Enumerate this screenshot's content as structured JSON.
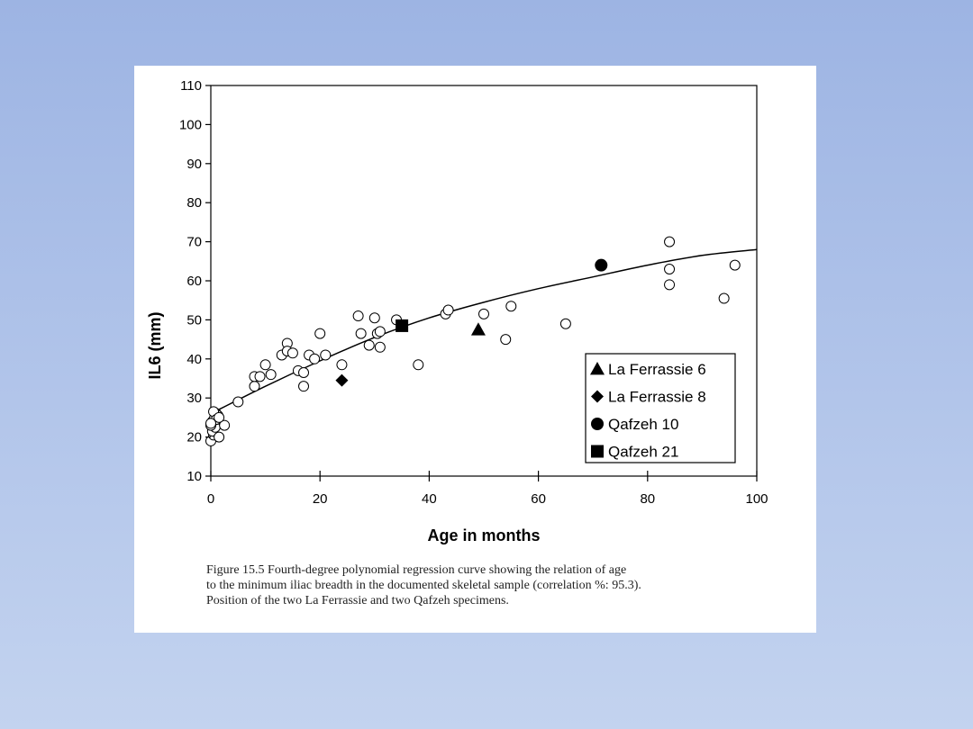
{
  "chart_data": {
    "type": "scatter",
    "xlabel": "Age in months",
    "ylabel": "IL6 (mm)",
    "xlim": [
      0,
      100
    ],
    "ylim": [
      10,
      110
    ],
    "xticks": [
      0,
      20,
      40,
      60,
      80,
      100
    ],
    "yticks": [
      10,
      20,
      30,
      40,
      50,
      60,
      70,
      80,
      90,
      100,
      110
    ],
    "grid": false,
    "legend_position": "lower-right",
    "series": [
      {
        "name": "Documented skeletal sample",
        "marker": "open-circle",
        "points": [
          [
            0,
            19
          ],
          [
            0.5,
            20.5
          ],
          [
            0.3,
            21.5
          ],
          [
            1.5,
            20
          ],
          [
            0.8,
            22.5
          ],
          [
            0,
            23
          ],
          [
            0.3,
            24
          ],
          [
            0.7,
            25
          ],
          [
            1,
            26
          ],
          [
            1.3,
            25.5
          ],
          [
            0.5,
            26.5
          ],
          [
            1,
            24.5
          ],
          [
            2.5,
            23
          ],
          [
            0,
            23.5
          ],
          [
            1.5,
            25
          ],
          [
            5,
            29
          ],
          [
            8,
            33
          ],
          [
            8,
            35.5
          ],
          [
            9,
            35.5
          ],
          [
            10,
            38.5
          ],
          [
            11,
            36
          ],
          [
            13,
            41
          ],
          [
            14,
            44
          ],
          [
            14,
            42
          ],
          [
            15,
            41.5
          ],
          [
            16,
            37
          ],
          [
            17,
            33
          ],
          [
            17,
            36.5
          ],
          [
            18,
            41
          ],
          [
            19,
            40
          ],
          [
            20,
            46.5
          ],
          [
            21,
            41
          ],
          [
            24,
            38.5
          ],
          [
            27,
            51
          ],
          [
            27.5,
            46.5
          ],
          [
            29,
            43.5
          ],
          [
            30,
            50.5
          ],
          [
            30.5,
            46.5
          ],
          [
            31,
            47
          ],
          [
            31,
            43
          ],
          [
            34,
            50
          ],
          [
            38,
            38.5
          ],
          [
            43,
            51.5
          ],
          [
            43.5,
            52.5
          ],
          [
            50,
            51.5
          ],
          [
            54,
            45
          ],
          [
            55,
            53.5
          ],
          [
            65,
            49
          ],
          [
            84,
            70
          ],
          [
            84,
            63
          ],
          [
            84,
            59
          ],
          [
            94,
            55.5
          ],
          [
            96,
            64
          ]
        ]
      },
      {
        "name": "La Ferrassie 6",
        "marker": "filled-triangle",
        "points": [
          [
            49,
            47.5
          ]
        ]
      },
      {
        "name": "La Ferrassie 8",
        "marker": "filled-diamond",
        "points": [
          [
            24,
            34.5
          ]
        ]
      },
      {
        "name": "Qafzeh 10",
        "marker": "filled-circle",
        "points": [
          [
            71.5,
            64
          ]
        ]
      },
      {
        "name": "Qafzeh 21",
        "marker": "filled-square",
        "points": [
          [
            35,
            48.5
          ]
        ]
      }
    ],
    "regression_curve": {
      "name": "Fourth-degree polynomial regression curve",
      "points": [
        [
          0,
          26
        ],
        [
          10,
          33
        ],
        [
          20,
          39.5
        ],
        [
          30,
          45.5
        ],
        [
          40,
          50.5
        ],
        [
          50,
          54.5
        ],
        [
          60,
          58
        ],
        [
          70,
          61
        ],
        [
          80,
          64
        ],
        [
          90,
          66.5
        ],
        [
          100,
          68
        ]
      ]
    },
    "legend": [
      {
        "label": "La Ferrassie 6",
        "marker": "filled-triangle"
      },
      {
        "label": "La Ferrassie 8",
        "marker": "filled-diamond"
      },
      {
        "label": "Qafzeh 10",
        "marker": "filled-circle"
      },
      {
        "label": "Qafzeh 21",
        "marker": "filled-square"
      }
    ]
  },
  "caption": {
    "line1": "Figure 15.5    Fourth-degree polynomial regression curve showing the relation of age",
    "line2": "to the minimum iliac breadth in the documented skeletal sample (correlation %: 95.3).",
    "line3": "Position of the two La Ferrassie and two Qafzeh specimens."
  }
}
